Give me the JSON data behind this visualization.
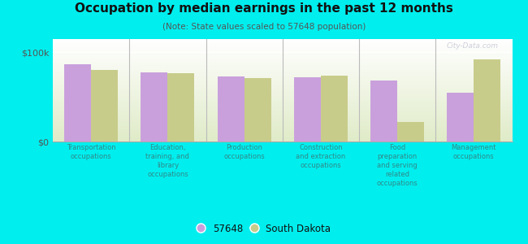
{
  "title": "Occupation by median earnings in the past 12 months",
  "subtitle": "(Note: State values scaled to 57648 population)",
  "categories": [
    "Transportation\noccupations",
    "Education,\ntraining, and\nlibrary\noccupations",
    "Production\noccupations",
    "Construction\nand extraction\noccupations",
    "Food\npreparation\nand serving\nrelated\noccupations",
    "Management\noccupations"
  ],
  "values_57648": [
    87000,
    78000,
    73000,
    72000,
    68000,
    55000
  ],
  "values_sd": [
    80000,
    77000,
    71000,
    74000,
    22000,
    92000
  ],
  "color_57648": "#c9a0dc",
  "color_sd": "#c8cc8a",
  "yticks": [
    0,
    100000
  ],
  "ytick_labels": [
    "$0",
    "$100k"
  ],
  "ylim": [
    0,
    115000
  ],
  "outer_background": "#00eeee",
  "bar_width": 0.35,
  "legend_label_57648": "57648",
  "legend_label_sd": "South Dakota",
  "watermark": "City-Data.com",
  "label_color": "#338888",
  "title_color": "#111111",
  "subtitle_color": "#555555"
}
